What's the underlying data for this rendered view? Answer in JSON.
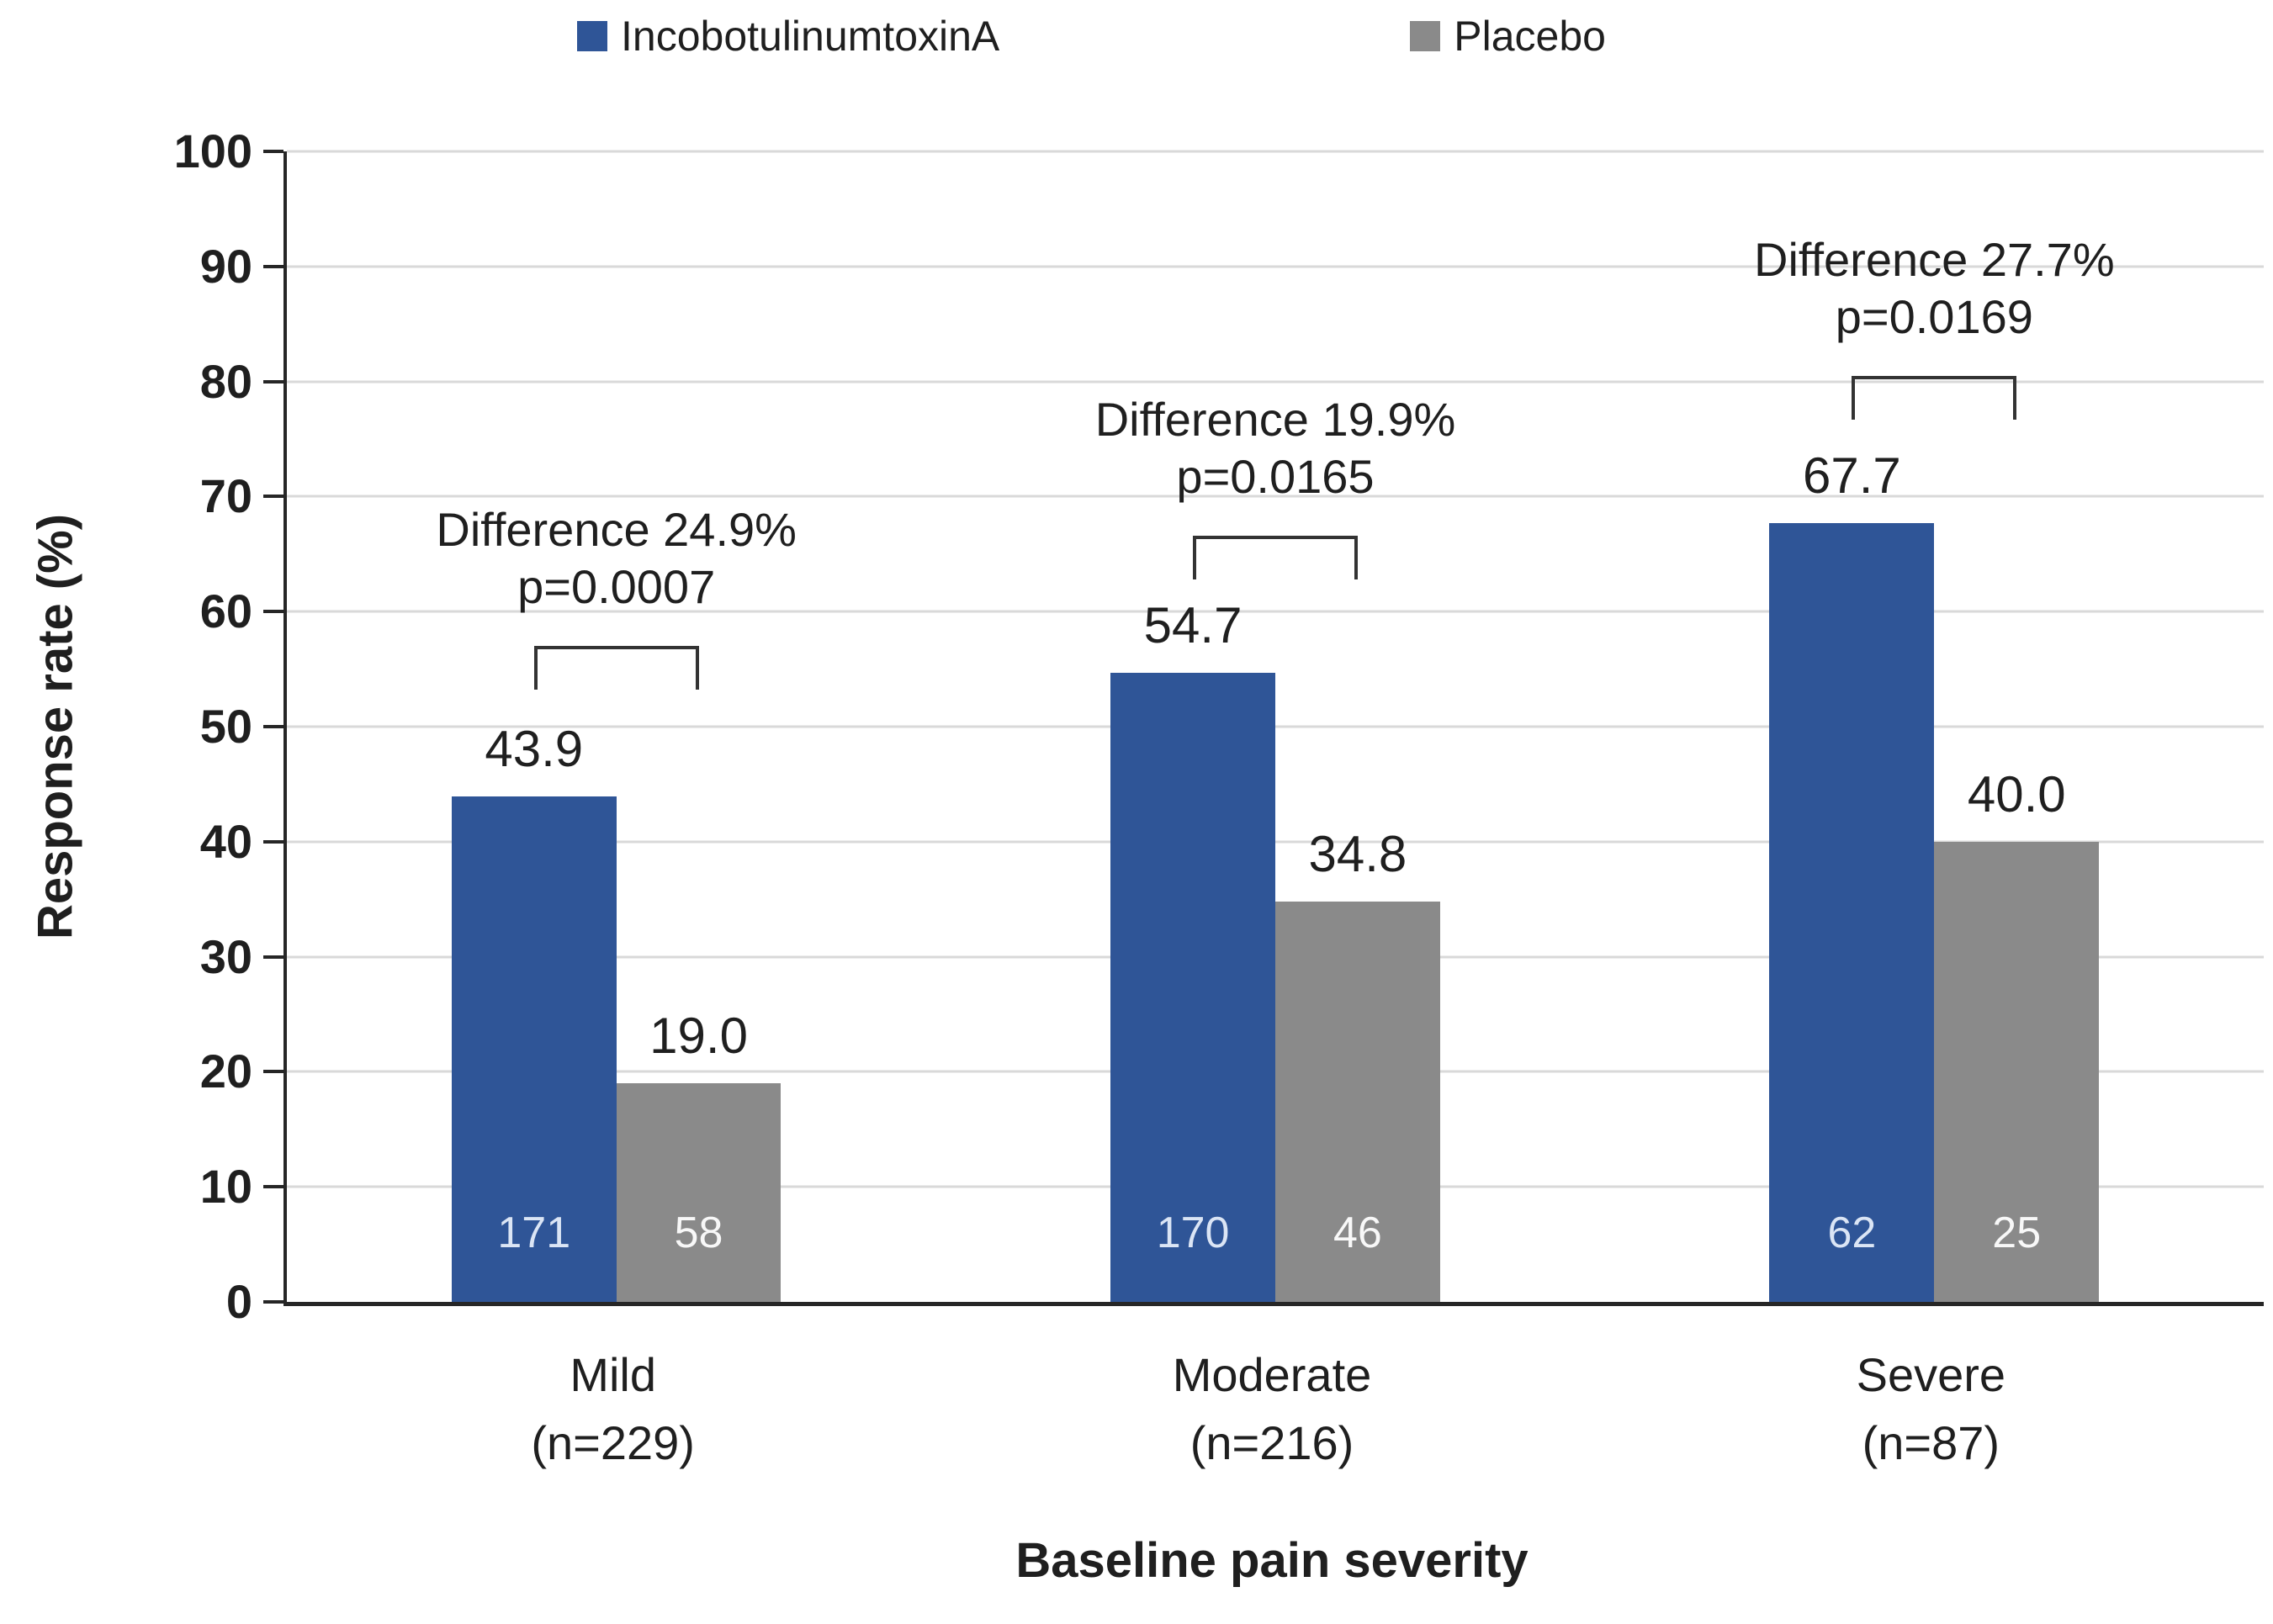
{
  "chart_data": {
    "type": "bar",
    "title": "",
    "xlabel": "Baseline pain severity",
    "ylabel": "Response rate (%)",
    "ylim": [
      0,
      100
    ],
    "ytick_interval": 10,
    "yticks": [
      "0",
      "10",
      "20",
      "30",
      "40",
      "50",
      "60",
      "70",
      "80",
      "90",
      "100"
    ],
    "grid": "horizontal",
    "legend_position": "top-center",
    "categories": [
      "Mild",
      "Moderate",
      "Severe"
    ],
    "category_sublabels": [
      "(n=229)",
      "(n=216)",
      "(n=87)"
    ],
    "series": [
      {
        "name": "IncobotulinumtoxinA",
        "color": "#2f5597",
        "values": [
          43.9,
          54.7,
          67.7
        ],
        "bar_counts": [
          "171",
          "170",
          "62"
        ]
      },
      {
        "name": "Placebo",
        "color": "#8a8a8a",
        "values": [
          19.0,
          34.8,
          40.0
        ],
        "bar_counts": [
          "58",
          "46",
          "25"
        ]
      }
    ],
    "groups": [
      {
        "category": "Mild",
        "n_label": "(n=229)",
        "treatment_value": 43.9,
        "treatment_value_label": "43.9",
        "treatment_count": "171",
        "placebo_value": 19.0,
        "placebo_value_label": "19.0",
        "placebo_count": "58",
        "difference_label": "Difference 24.9%",
        "p_label": "p=0.0007",
        "bracket_y": 57.0
      },
      {
        "category": "Moderate",
        "n_label": "(n=216)",
        "treatment_value": 54.7,
        "treatment_value_label": "54.7",
        "treatment_count": "170",
        "placebo_value": 34.8,
        "placebo_value_label": "34.8",
        "placebo_count": "46",
        "difference_label": "Difference 19.9%",
        "p_label": "p=0.0165",
        "bracket_y": 66.6
      },
      {
        "category": "Severe",
        "n_label": "(n=87)",
        "treatment_value": 67.7,
        "treatment_value_label": "67.7",
        "treatment_count": "62",
        "placebo_value": 40.0,
        "placebo_value_label": "40.0",
        "placebo_count": "25",
        "difference_label": "Difference 27.7%",
        "p_label": "p=0.0169",
        "bracket_y": 80.5
      }
    ]
  }
}
